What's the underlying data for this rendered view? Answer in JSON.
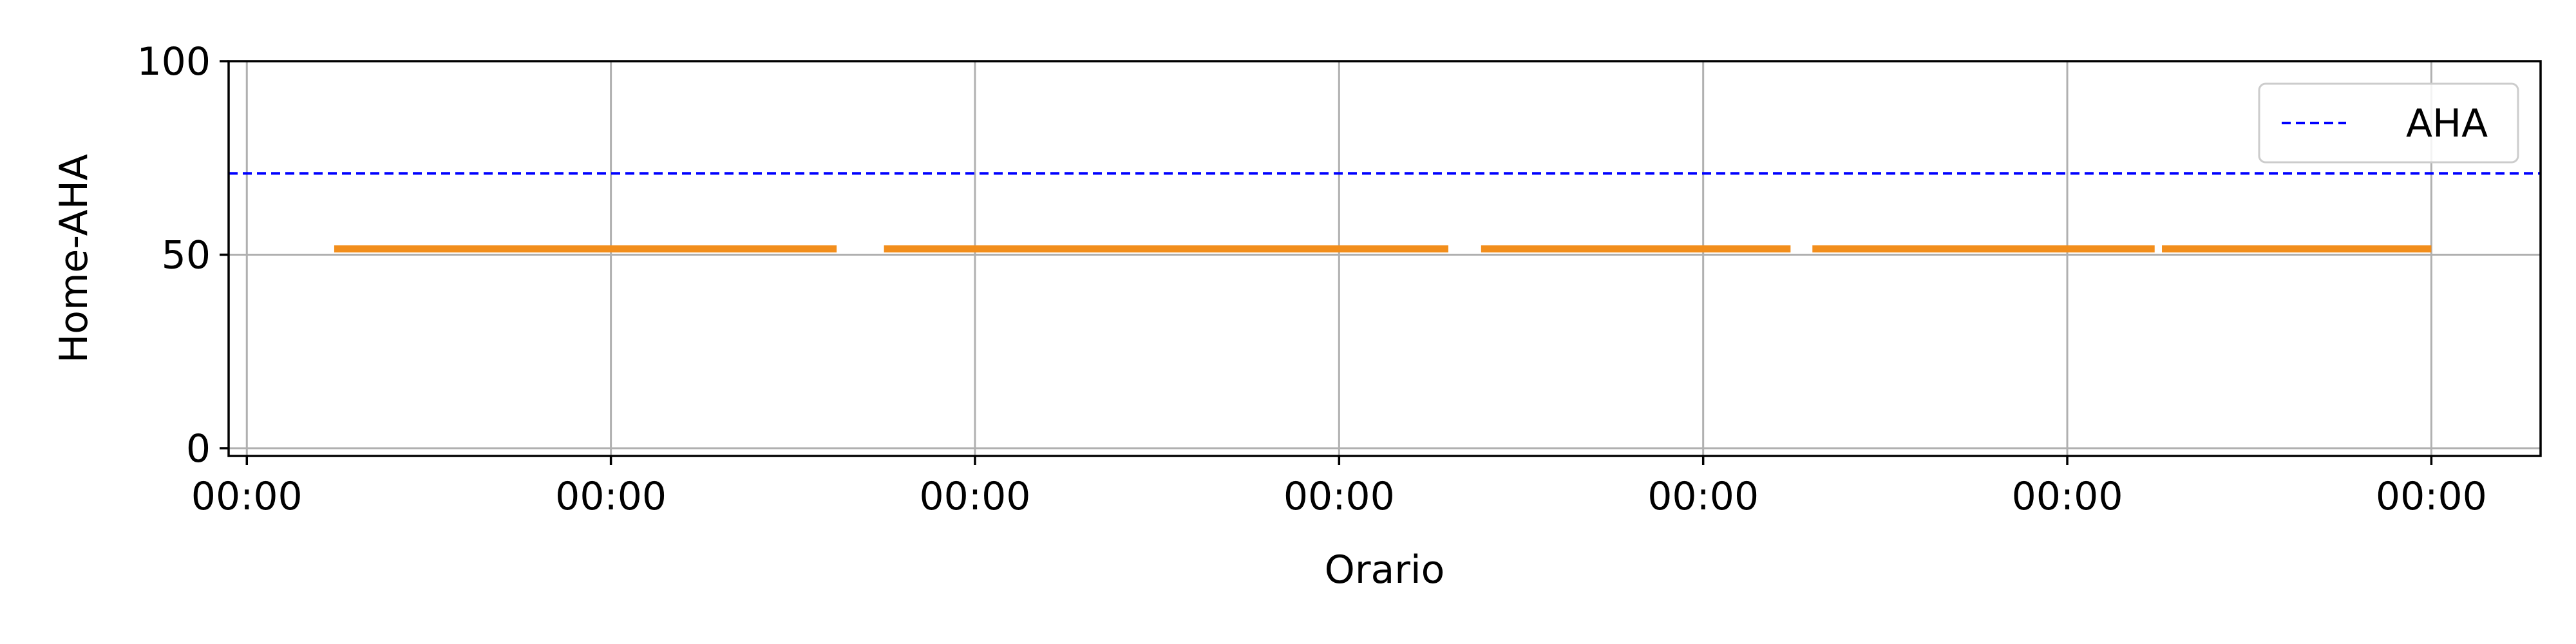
{
  "chart_data": {
    "type": "line",
    "title": "",
    "xlabel": "Orario",
    "ylabel": "Home-AHA",
    "xlim": [
      -0.05,
      6.3
    ],
    "ylim": [
      -2,
      100
    ],
    "grid": true,
    "legend_position": "top-right",
    "x_ticks": [
      0,
      1,
      2,
      3,
      4,
      5,
      6
    ],
    "x_tick_labels": [
      "00:00",
      "00:00",
      "00:00",
      "00:00",
      "00:00",
      "00:00",
      "00:00"
    ],
    "y_ticks": [
      0,
      50,
      100
    ],
    "y_tick_labels": [
      "0",
      "50",
      "100"
    ],
    "reference_line": {
      "label": "AHA",
      "value": 71,
      "color": "#0000ff",
      "style": "dashed"
    },
    "series": [
      {
        "color": "#f28e1c",
        "segments": [
          {
            "x": [
              0.24,
              1.62
            ],
            "y": [
              51.5,
              51.5
            ]
          },
          {
            "x": [
              1.75,
              3.3
            ],
            "y": [
              51.5,
              51.5
            ]
          },
          {
            "x": [
              3.39,
              4.24
            ],
            "y": [
              51.5,
              51.5
            ]
          },
          {
            "x": [
              4.3,
              5.24
            ],
            "y": [
              51.5,
              51.5
            ]
          },
          {
            "x": [
              5.26,
              6.0
            ],
            "y": [
              51.5,
              51.5
            ]
          }
        ]
      }
    ]
  }
}
